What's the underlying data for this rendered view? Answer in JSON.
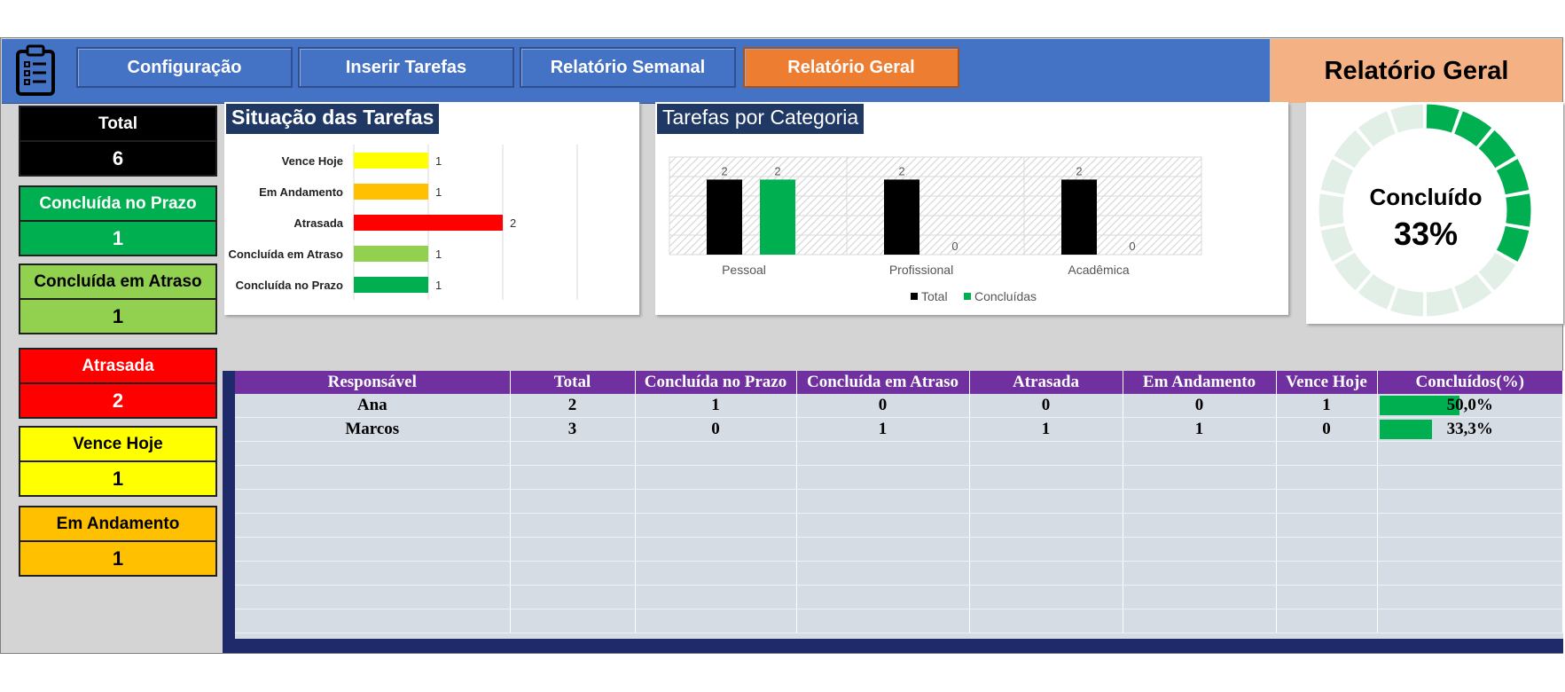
{
  "nav": {
    "buttons": [
      "Configuração",
      "Inserir Tarefas",
      "Relatório Semanal",
      "Relatório Geral"
    ],
    "active": "Relatório Geral"
  },
  "header": {
    "title": "Relatório Geral",
    "icon": "clipboard-checklist-icon"
  },
  "kpis": [
    {
      "label": "Total",
      "value": "6",
      "color": "#000000",
      "text_color": "#ffffff"
    },
    {
      "label": "Concluída no Prazo",
      "value": "1",
      "color": "#00b050",
      "text_color": "#ffffff"
    },
    {
      "label": "Concluída em Atraso",
      "value": "1",
      "color": "#92d050",
      "text_color": "#000000"
    },
    {
      "label": "Atrasada",
      "value": "2",
      "color": "#ff0000",
      "text_color": "#ffffff"
    },
    {
      "label": "Vence Hoje",
      "value": "1",
      "color": "#ffff00",
      "text_color": "#000000"
    },
    {
      "label": "Em Andamento",
      "value": "1",
      "color": "#ffc000",
      "text_color": "#000000"
    }
  ],
  "chart_data": [
    {
      "type": "bar",
      "orientation": "horizontal",
      "title": "Situação das Tarefas",
      "categories": [
        "Vence Hoje",
        "Em Andamento",
        "Atrasada",
        "Concluída em Atraso",
        "Concluída no Prazo"
      ],
      "values": [
        1,
        1,
        2,
        1,
        1
      ],
      "colors": [
        "#ffff00",
        "#ffc000",
        "#ff0000",
        "#92d050",
        "#00b050"
      ],
      "xlim": [
        0,
        3
      ],
      "grid": true
    },
    {
      "type": "bar",
      "title": "Tarefas por Categoria",
      "categories": [
        "Pessoal",
        "Profissional",
        "Acadêmica"
      ],
      "series": [
        {
          "name": "Total",
          "values": [
            2,
            2,
            2
          ],
          "color": "#000000"
        },
        {
          "name": "Concluídas",
          "values": [
            2,
            0,
            0
          ],
          "color": "#00b050"
        }
      ],
      "ylim": [
        0,
        2.6
      ],
      "legend": "bottom",
      "grid": true
    },
    {
      "type": "pie",
      "style": "segmented-donut",
      "label": "Concluído",
      "value_text": "33%",
      "fraction": 0.333,
      "segments": 18,
      "color": "#00b050",
      "track_color": "#e2efe6"
    }
  ],
  "table": {
    "headers": [
      "Responsável",
      "Total",
      "Concluída no Prazo",
      "Concluída em Atraso",
      "Atrasada",
      "Em Andamento",
      "Vence Hoje",
      "Concluídos(%)"
    ],
    "rows": [
      {
        "cells": [
          "Ana",
          "2",
          "1",
          "0",
          "0",
          "0",
          "1",
          "50,0%"
        ],
        "pct": 0.5
      },
      {
        "cells": [
          "Marcos",
          "3",
          "0",
          "1",
          "1",
          "1",
          "0",
          "33,3%"
        ],
        "pct": 0.333
      }
    ],
    "empty_rows": 8
  }
}
